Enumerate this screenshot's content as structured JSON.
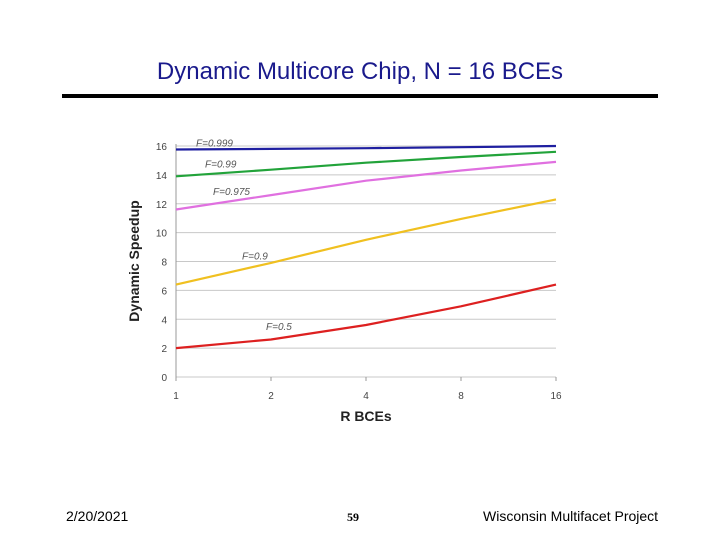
{
  "slide": {
    "title": "Dynamic Multicore Chip, N = 16 BCEs",
    "footer_date": "2/20/2021",
    "page_number": "59",
    "footer_project": "Wisconsin Multifacet Project",
    "title_color": "#1a1a8c"
  },
  "chart_data": {
    "type": "line",
    "title": "",
    "xlabel": "R BCEs",
    "ylabel": "Dynamic Speedup",
    "categories": [
      "1",
      "2",
      "4",
      "8",
      "16"
    ],
    "x": [
      1,
      2,
      4,
      8,
      16
    ],
    "ylim": [
      0,
      16
    ],
    "yticks": [
      "0",
      "2",
      "4",
      "6",
      "8",
      "10",
      "12",
      "14",
      "16"
    ],
    "grid": true,
    "series": [
      {
        "name": "F=0.999",
        "color": "#1f1fa0",
        "values": [
          15.76,
          15.8,
          15.85,
          15.92,
          16.0
        ]
      },
      {
        "name": "F=0.99",
        "color": "#22a33a",
        "values": [
          13.9,
          14.36,
          14.84,
          15.24,
          15.6
        ]
      },
      {
        "name": "F=0.975",
        "color": "#e070e0",
        "values": [
          11.6,
          12.6,
          13.6,
          14.3,
          14.9
        ]
      },
      {
        "name": "F=0.9",
        "color": "#f0c020",
        "values": [
          6.4,
          7.9,
          9.5,
          10.95,
          12.3
        ]
      },
      {
        "name": "F=0.5",
        "color": "#dd2020",
        "values": [
          2.0,
          2.6,
          3.6,
          4.9,
          6.4
        ]
      }
    ]
  }
}
